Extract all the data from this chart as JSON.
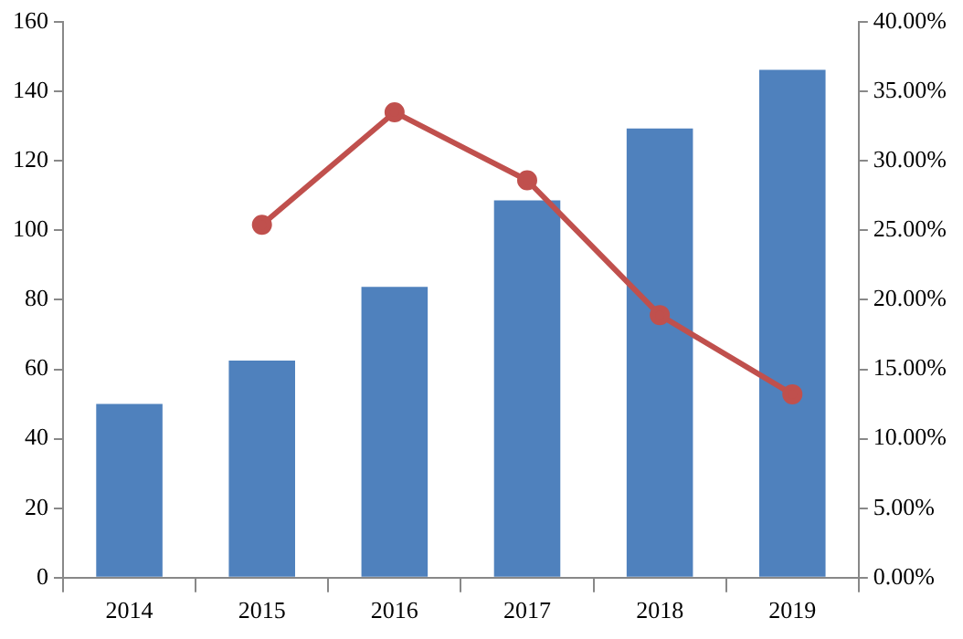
{
  "chart_data": {
    "type": "bar",
    "categories": [
      "2014",
      "2015",
      "2016",
      "2017",
      "2018",
      "2019"
    ],
    "series": [
      {
        "color": "#4f81bd",
        "values": [
          50,
          62.5,
          83.7,
          108.6,
          129.3,
          146.2
        ]
      },
      {
        "type": "line",
        "axis": "y2",
        "color": "#c0504d",
        "marker": "circle",
        "values": [
          null,
          25.4,
          33.5,
          28.6,
          18.9,
          13.2
        ]
      }
    ],
    "ylim": [
      0,
      160
    ],
    "yticks": [
      0,
      20,
      40,
      60,
      80,
      100,
      120,
      140,
      160
    ],
    "y2lim": [
      0,
      40
    ],
    "y2ticks": [
      {
        "value": 0,
        "label": "0.00%"
      },
      {
        "value": 5,
        "label": "5.00%"
      },
      {
        "value": 10,
        "label": "10.00%"
      },
      {
        "value": 15,
        "label": "15.00%"
      },
      {
        "value": 20,
        "label": "20.00%"
      },
      {
        "value": 25,
        "label": "25.00%"
      },
      {
        "value": 30,
        "label": "30.00%"
      },
      {
        "value": 35,
        "label": "35.00%"
      },
      {
        "value": 40,
        "label": "40.00%"
      }
    ],
    "grid": false,
    "legend": false
  }
}
